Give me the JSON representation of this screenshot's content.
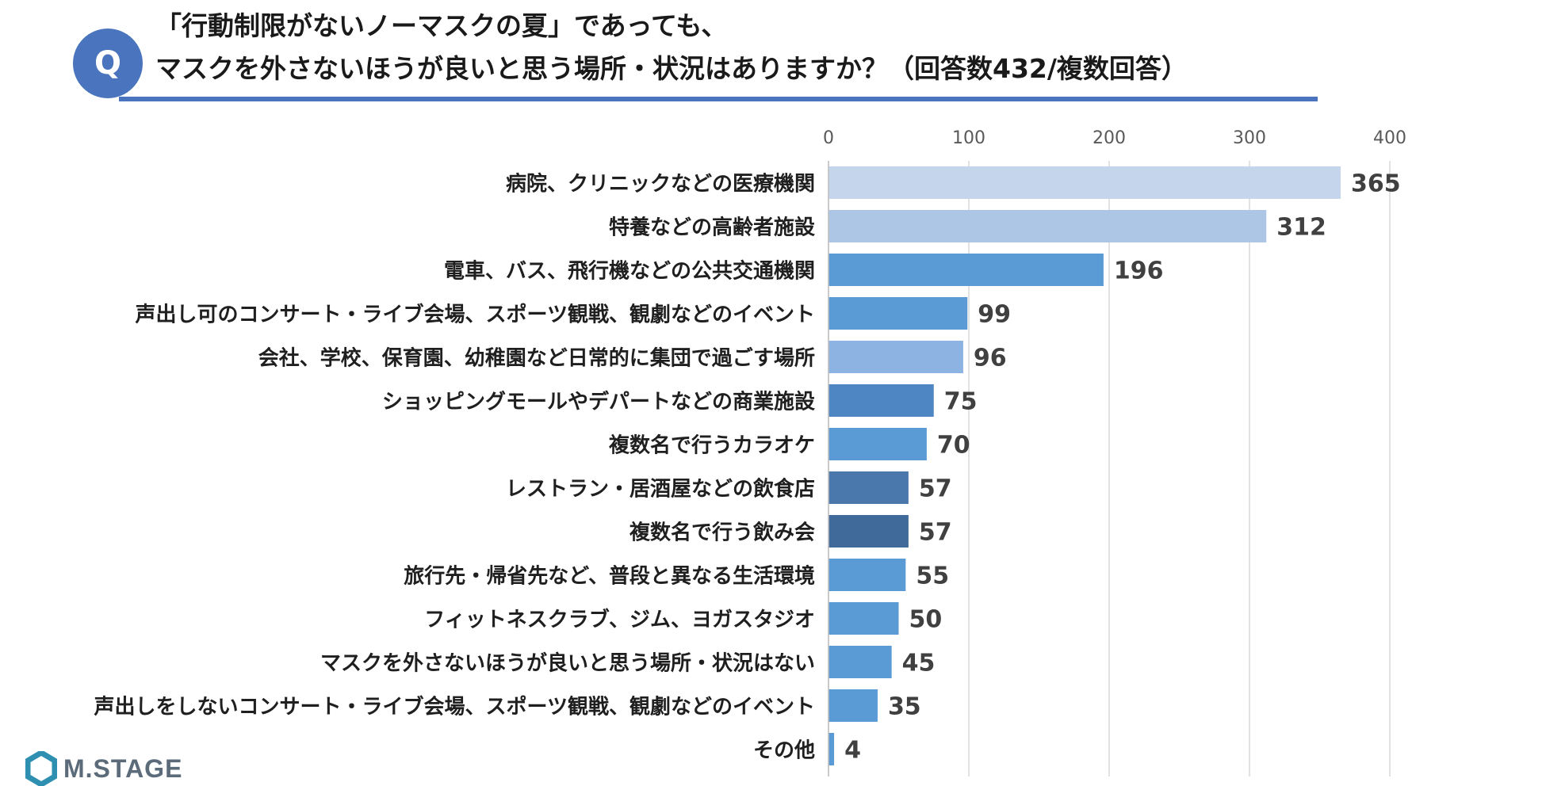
{
  "header": {
    "badge": "Q",
    "title_line1": "「行動制限がないノーマスクの夏」であっても、",
    "title_line2": "マスクを外さないほうが良いと思う場所・状況はありますか？（回答数432/複数回答）"
  },
  "logo": {
    "text": "M.STAGE"
  },
  "chart_data": {
    "type": "bar",
    "orientation": "horizontal",
    "title": "「行動制限がないノーマスクの夏」であっても、マスクを外さないほうが良いと思う場所・状況はありますか？（回答数432/複数回答）",
    "xlim": [
      0,
      400
    ],
    "ticks": [
      0,
      100,
      200,
      300,
      400
    ],
    "tick_labels": [
      "0",
      "100",
      "200",
      "300",
      "400"
    ],
    "grid": true,
    "categories": [
      "病院、クリニックなどの医療機関",
      "特養などの高齢者施設",
      "電車、バス、飛行機などの公共交通機関",
      "声出し可のコンサート・ライブ会場、スポーツ観戦、観劇などのイベント",
      "会社、学校、保育園、幼稚園など日常的に集団で過ごす場所",
      "ショッピングモールやデパートなどの商業施設",
      "複数名で行うカラオケ",
      "レストラン・居酒屋などの飲食店",
      "複数名で行う飲み会",
      "旅行先・帰省先など、普段と異なる生活環境",
      "フィットネスクラブ、ジム、ヨガスタジオ",
      "マスクを外さないほうが良いと思う場所・状況はない",
      "声出しをしないコンサート・ライブ会場、スポーツ観戦、観劇などのイベント",
      "その他"
    ],
    "values": [
      365,
      312,
      196,
      99,
      96,
      75,
      70,
      57,
      57,
      55,
      50,
      45,
      35,
      4
    ],
    "value_labels": [
      "365",
      "312",
      "196",
      "99",
      "96",
      "75",
      "70",
      "57",
      "57",
      "55",
      "50",
      "45",
      "35",
      "4"
    ],
    "colors": [
      "#c5d6ec",
      "#adc6e6",
      "#5b9bd5",
      "#5b9bd5",
      "#8db3e2",
      "#4e86c4",
      "#5b9bd5",
      "#4a78ad",
      "#3f6a9a",
      "#5b9bd5",
      "#5b9bd5",
      "#5b9bd5",
      "#5b9bd5",
      "#5b9bd5"
    ]
  }
}
